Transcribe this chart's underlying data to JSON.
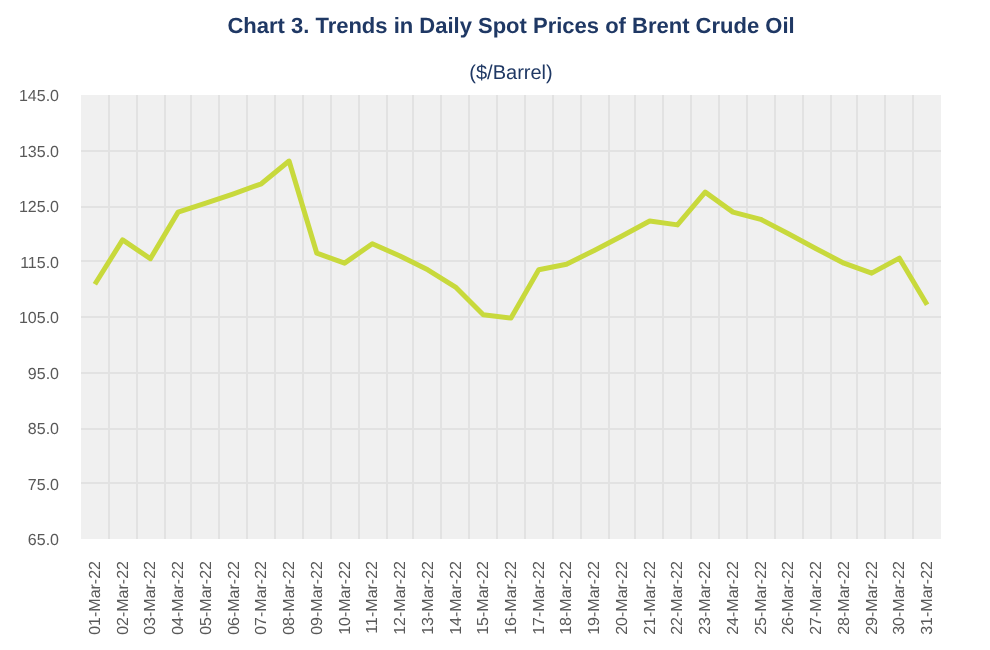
{
  "chart_data": {
    "type": "line",
    "title": "Chart 3. Trends in Daily Spot Prices of Brent Crude Oil",
    "subtitle": "($/Barrel)",
    "categories": [
      "01-Mar-22",
      "02-Mar-22",
      "03-Mar-22",
      "04-Mar-22",
      "05-Mar-22",
      "06-Mar-22",
      "07-Mar-22",
      "08-Mar-22",
      "09-Mar-22",
      "10-Mar-22",
      "11-Mar-22",
      "12-Mar-22",
      "13-Mar-22",
      "14-Mar-22",
      "15-Mar-22",
      "16-Mar-22",
      "17-Mar-22",
      "18-Mar-22",
      "19-Mar-22",
      "20-Mar-22",
      "21-Mar-22",
      "22-Mar-22",
      "23-Mar-22",
      "24-Mar-22",
      "25-Mar-22",
      "26-Mar-22",
      "27-Mar-22",
      "28-Mar-22",
      "29-Mar-22",
      "30-Mar-22",
      "31-Mar-22"
    ],
    "series": [
      {
        "color": "#c8d93c",
        "values": [
          110.9,
          118.9,
          115.5,
          123.9,
          125.5,
          127.2,
          129.0,
          133.1,
          116.5,
          114.7,
          118.2,
          116.0,
          113.5,
          110.4,
          105.4,
          104.8,
          113.5,
          114.5,
          117.0,
          119.6,
          122.3,
          121.6,
          127.5,
          123.9,
          122.6,
          120.0,
          117.3,
          114.7,
          112.9,
          115.6,
          107.2
        ]
      }
    ],
    "ylim": [
      65,
      145
    ],
    "yticks": [
      {
        "value": 65,
        "label": "65.0"
      },
      {
        "value": 75,
        "label": "75.0"
      },
      {
        "value": 85,
        "label": "85.0"
      },
      {
        "value": 95,
        "label": "95.0"
      },
      {
        "value": 105,
        "label": "105.0"
      },
      {
        "value": 115,
        "label": "115.0"
      },
      {
        "value": 125,
        "label": "125.0"
      },
      {
        "value": 135,
        "label": "135.0"
      },
      {
        "value": 145,
        "label": "145.0"
      }
    ],
    "grid": true,
    "marker": "none",
    "line_style": "solid"
  }
}
